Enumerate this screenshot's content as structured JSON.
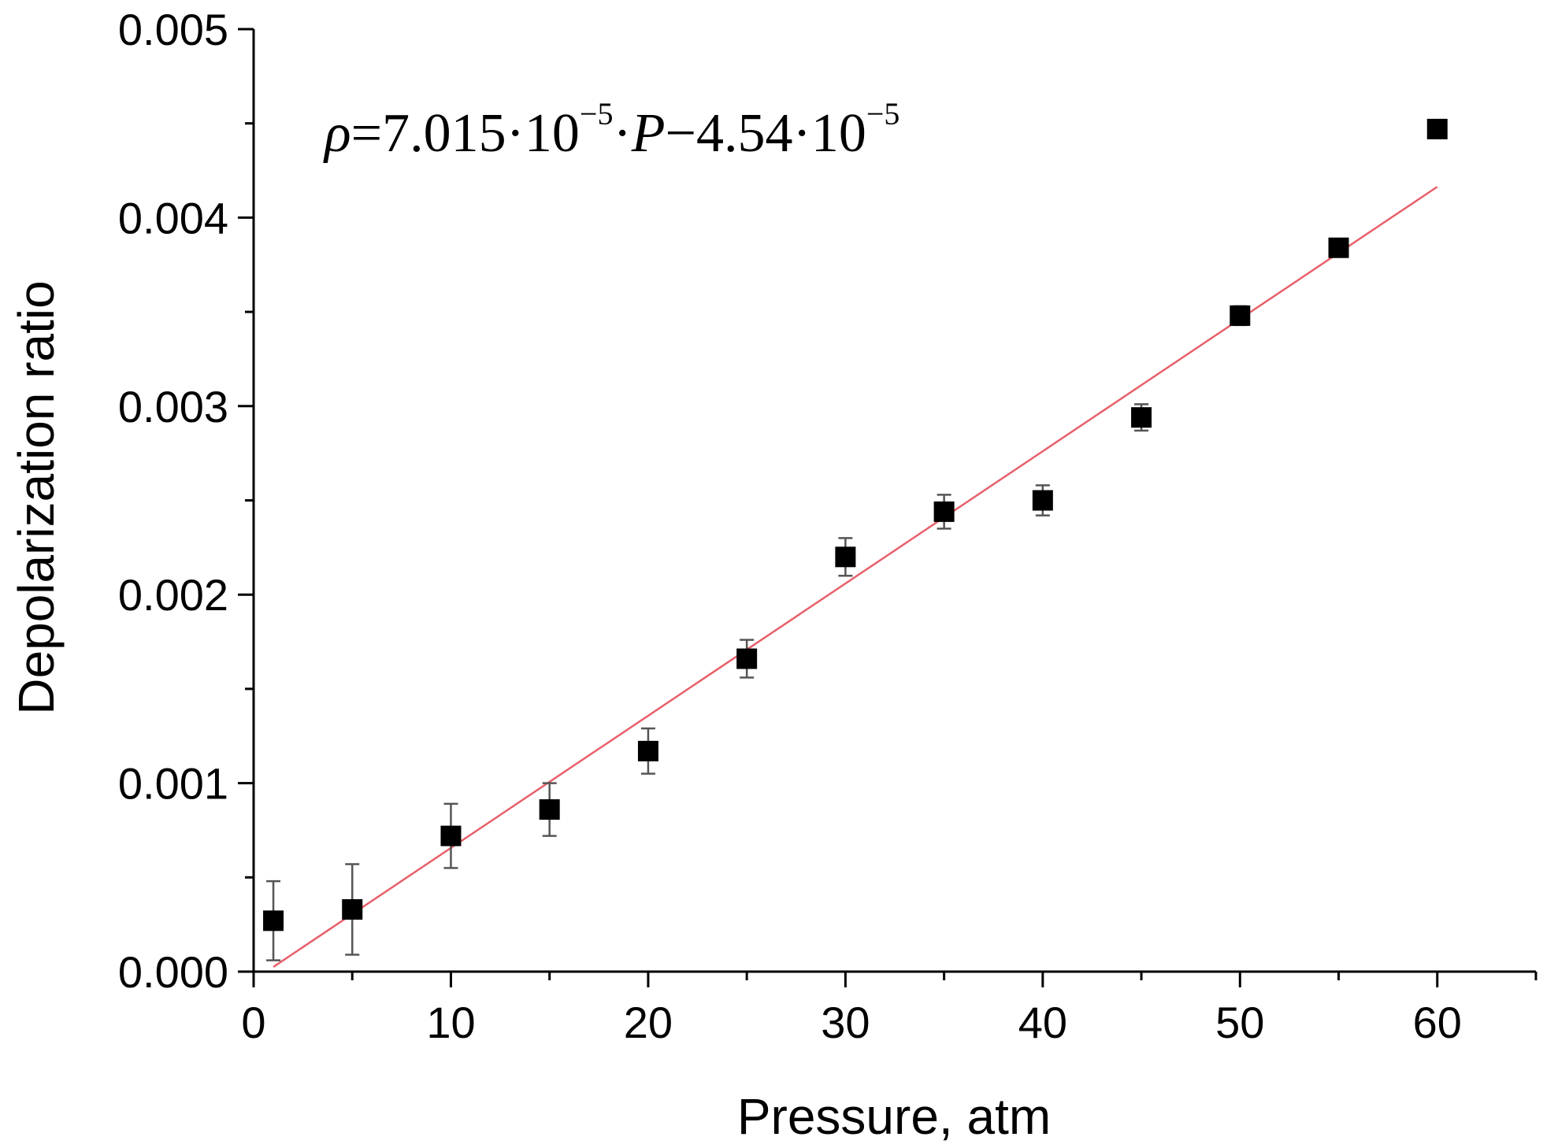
{
  "chart_data": {
    "type": "scatter",
    "title": "",
    "xlabel": "Pressure, atm",
    "ylabel": "Depolarization ratio",
    "xlim": [
      0,
      65
    ],
    "ylim": [
      0,
      0.005
    ],
    "x_ticks": [
      0,
      10,
      20,
      30,
      40,
      50,
      60
    ],
    "x_tick_labels": [
      "0",
      "10",
      "20",
      "30",
      "40",
      "50",
      "60"
    ],
    "y_ticks": [
      0,
      0.001,
      0.002,
      0.003,
      0.004,
      0.005
    ],
    "y_tick_labels": [
      "0.000",
      "0.001",
      "0.002",
      "0.003",
      "0.004",
      "0.005"
    ],
    "grid": false,
    "annotation": {
      "rho": "ρ",
      "part1": "=7.015·10",
      "exp1": "−5",
      "part2": "·",
      "var": "P",
      "part3": "−4.54·10",
      "exp2": "−5"
    },
    "series": [
      {
        "marker": "square",
        "color": "#000000",
        "x": [
          1,
          5,
          10,
          15,
          20,
          25,
          30,
          35,
          40,
          45,
          50,
          55,
          60
        ],
        "y": [
          0.00027,
          0.00033,
          0.00072,
          0.00086,
          0.00117,
          0.00166,
          0.0022,
          0.00244,
          0.0025,
          0.00294,
          0.00348,
          0.00384,
          0.00447
        ],
        "yerr": [
          0.00021,
          0.00024,
          0.00017,
          0.00014,
          0.00012,
          0.0001,
          0.0001,
          9e-05,
          8e-05,
          7e-05,
          5e-05,
          4e-05,
          4e-05
        ]
      },
      {
        "type": "line",
        "color": "#e8606a",
        "slope": 7.015e-05,
        "intercept": -4.54e-05,
        "x_range": [
          1,
          60
        ]
      }
    ]
  }
}
